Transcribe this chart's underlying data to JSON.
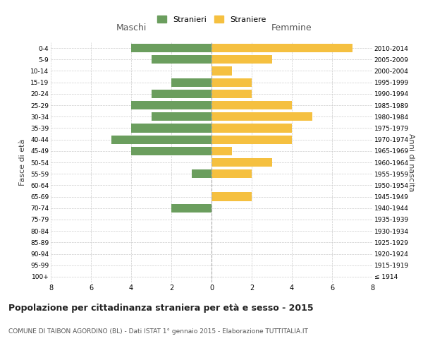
{
  "age_groups": [
    "100+",
    "95-99",
    "90-94",
    "85-89",
    "80-84",
    "75-79",
    "70-74",
    "65-69",
    "60-64",
    "55-59",
    "50-54",
    "45-49",
    "40-44",
    "35-39",
    "30-34",
    "25-29",
    "20-24",
    "15-19",
    "10-14",
    "5-9",
    "0-4"
  ],
  "birth_years": [
    "≤ 1914",
    "1915-1919",
    "1920-1924",
    "1925-1929",
    "1930-1934",
    "1935-1939",
    "1940-1944",
    "1945-1949",
    "1950-1954",
    "1955-1959",
    "1960-1964",
    "1965-1969",
    "1970-1974",
    "1975-1979",
    "1980-1984",
    "1985-1989",
    "1990-1994",
    "1995-1999",
    "2000-2004",
    "2005-2009",
    "2010-2014"
  ],
  "maschi": [
    0,
    0,
    0,
    0,
    0,
    0,
    2,
    0,
    0,
    1,
    0,
    4,
    5,
    4,
    3,
    4,
    3,
    2,
    0,
    3,
    4
  ],
  "femmine": [
    0,
    0,
    0,
    0,
    0,
    0,
    0,
    2,
    0,
    2,
    3,
    1,
    4,
    4,
    5,
    4,
    2,
    2,
    1,
    3,
    7
  ],
  "male_color": "#6b9e5e",
  "female_color": "#f5c040",
  "title": "Popolazione per cittadinanza straniera per età e sesso - 2015",
  "subtitle": "COMUNE DI TAIBON AGORDINO (BL) - Dati ISTAT 1° gennaio 2015 - Elaborazione TUTTITALIA.IT",
  "xlabel_left": "Maschi",
  "xlabel_right": "Femmine",
  "ylabel_left": "Fasce di età",
  "ylabel_right": "Anni di nascita",
  "legend_male": "Stranieri",
  "legend_female": "Straniere",
  "xlim": 8,
  "background_color": "#ffffff",
  "grid_color": "#cccccc"
}
